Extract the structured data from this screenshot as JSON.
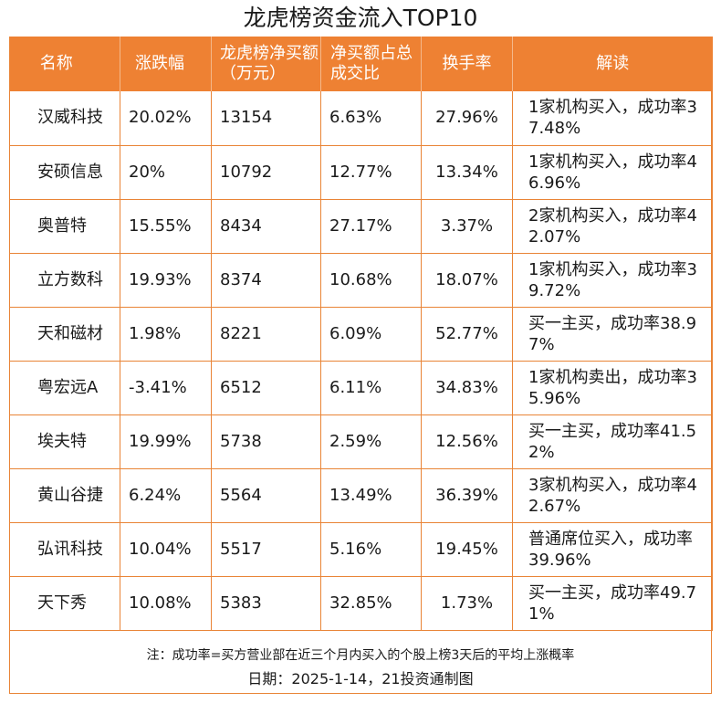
{
  "title": "龙虎榜资金流入TOP10",
  "accent_color": "#ee8133",
  "columns": [
    "名称",
    "涨跌幅",
    "龙虎榜净买额（万元）",
    "净买额占总成交比",
    "换手率",
    "解读"
  ],
  "rows": [
    [
      "汉威科技",
      "20.02%",
      "13154",
      "6.63%",
      "27.96%",
      "1家机构买入，成功率37.48%"
    ],
    [
      "安硕信息",
      "20%",
      "10792",
      "12.77%",
      "13.34%",
      "1家机构买入，成功率46.96%"
    ],
    [
      "奥普特",
      "15.55%",
      "8434",
      "27.17%",
      "3.37%",
      "2家机构买入，成功率42.07%"
    ],
    [
      "立方数科",
      "19.93%",
      "8374",
      "10.68%",
      "18.07%",
      "1家机构买入，成功率39.72%"
    ],
    [
      "天和磁材",
      "1.98%",
      "8221",
      "6.09%",
      "52.77%",
      "买一主买，成功率38.97%"
    ],
    [
      "粤宏远A",
      "-3.41%",
      "6512",
      "6.11%",
      "34.83%",
      "1家机构卖出，成功率35.96%"
    ],
    [
      "埃夫特",
      "19.99%",
      "5738",
      "2.59%",
      "12.56%",
      "买一主买，成功率41.52%"
    ],
    [
      "黄山谷捷",
      "6.24%",
      "5564",
      "13.49%",
      "36.39%",
      "3家机构买入，成功率42.67%"
    ],
    [
      "弘讯科技",
      "10.04%",
      "5517",
      "5.16%",
      "19.45%",
      "普通席位买入，成功率39.96%"
    ],
    [
      "天下秀",
      "10.08%",
      "5383",
      "32.85%",
      "1.73%",
      "买一主买，成功率49.71%"
    ]
  ],
  "footer": {
    "note": "注：成功率=买方营业部在近三个月内买入的个股上榜3天后的平均上涨概率",
    "date": "日期：2025-1-14，21投资通制图"
  }
}
